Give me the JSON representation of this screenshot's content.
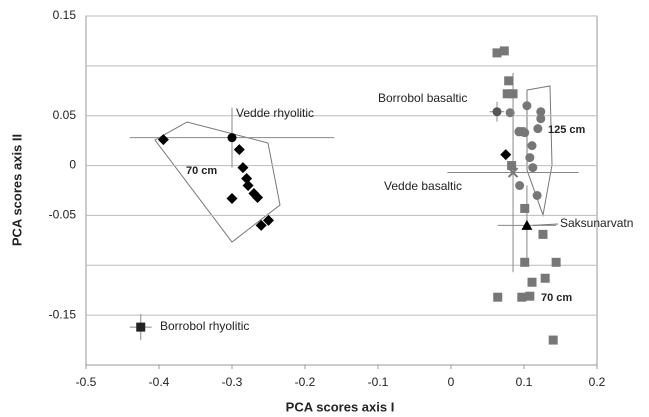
{
  "chart_data": {
    "type": "scatter",
    "xlabel": "PCA scores axis I",
    "ylabel": "PCA scores axis II",
    "xlim": [
      -0.5,
      0.2
    ],
    "xticks": [
      -0.5,
      -0.4,
      -0.3,
      -0.2,
      -0.1,
      0,
      0.1,
      0.2
    ],
    "ylim": [
      -0.2,
      0.15
    ],
    "yticks": [
      -0.15,
      -0.05,
      0,
      0.05,
      0.15
    ],
    "ygrid": [
      -0.15,
      -0.1,
      -0.05,
      0,
      0.05,
      0.1,
      0.15
    ],
    "series": [
      {
        "name": "Vedde rhyolitic",
        "color": "#000000",
        "marker": "diamond",
        "x": [
          -0.394,
          -0.3,
          -0.29,
          -0.285,
          -0.28,
          -0.278,
          -0.27,
          -0.265,
          -0.26,
          -0.25
        ],
        "y": [
          0.026,
          -0.033,
          0.016,
          -0.002,
          -0.013,
          -0.02,
          -0.028,
          -0.032,
          -0.06,
          -0.055
        ],
        "mean": {
          "x": -0.3,
          "y": 0.028,
          "xerr": 0.14,
          "yerr": 0.03,
          "marker": "circle",
          "color": "#000000"
        }
      },
      {
        "name": "Borrobol rhyolitic",
        "color": "#000000",
        "marker": "square",
        "x": [],
        "y": [],
        "mean": {
          "x": -0.425,
          "y": -0.162,
          "xerr": 0.015,
          "yerr": 0.013,
          "marker": "square",
          "color": "#222222"
        }
      },
      {
        "name": "Borrobol basaltic",
        "color": "#777777",
        "marker": "circle",
        "x": [
          0.104,
          0.123,
          0.123,
          0.093,
          0.101,
          0.119,
          0.111,
          0.108,
          0.112,
          0.094,
          0.118,
          0.081
        ],
        "y": [
          0.06,
          0.054,
          0.047,
          0.034,
          0.033,
          0.037,
          0.02,
          0.008,
          -0.002,
          -0.02,
          -0.03,
          0.053
        ],
        "mean": {
          "x": 0.063,
          "y": 0.054,
          "xerr": 0.01,
          "yerr": 0.01,
          "marker": "circle",
          "color": "#555555"
        }
      },
      {
        "name": "Vedde basaltic",
        "color": "#000000",
        "marker": "diamond",
        "x": [
          0.075
        ],
        "y": [
          0.011
        ],
        "mean": {
          "x": 0.085,
          "y": -0.007,
          "xerr": 0.09,
          "yerr": 0.1,
          "marker": "cross",
          "color": "#777777"
        }
      },
      {
        "name": "Saksunarvatn",
        "color": "#777777",
        "marker": "square",
        "x": [
          0.063,
          0.073,
          0.079,
          0.077,
          0.085,
          0.096,
          0.101,
          0.126,
          0.101,
          0.144,
          0.111,
          0.129,
          0.064,
          0.097,
          0.108,
          0.14,
          0.083
        ],
        "y": [
          0.113,
          0.115,
          0.085,
          0.072,
          0.072,
          0.034,
          -0.043,
          -0.069,
          -0.097,
          -0.097,
          -0.117,
          -0.113,
          -0.132,
          -0.132,
          -0.131,
          -0.175,
          0.0
        ],
        "mean": {
          "x": 0.104,
          "y": -0.06,
          "xerr": 0.04,
          "yerr": 0.04,
          "marker": "triangle",
          "color": "#000000"
        }
      }
    ],
    "annotations": [
      "70 cm",
      "125 cm",
      "70 cm"
    ]
  }
}
